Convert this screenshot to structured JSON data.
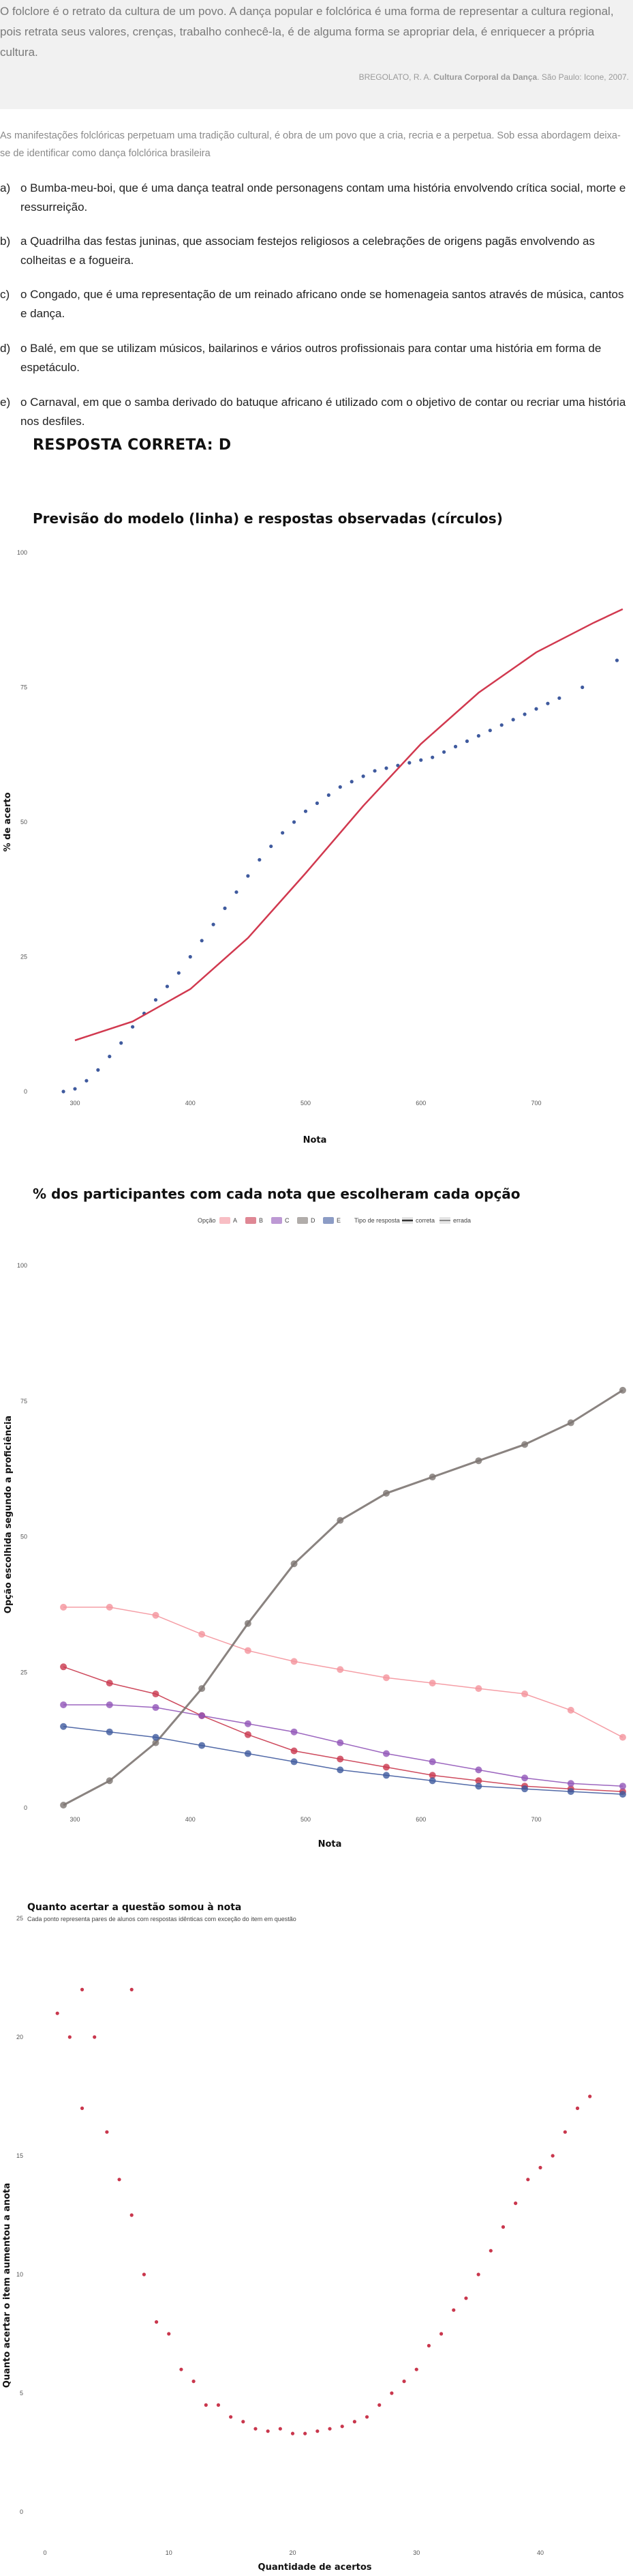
{
  "quote": {
    "text": "O folclore é o retrato da cultura de um povo. A dança popular e folclórica é uma forma de representar a cultura regional, pois retrata seus valores, crenças, trabalho conhecê-la, é de alguma forma se apropriar dela, é enriquecer a própria cultura.",
    "source_prefix": "BREGOLATO, R. A.",
    "source_title": "Cultura Corporal da Dança",
    "source_suffix": ". São Paulo: Icone, 2007."
  },
  "intro": "As manifestações folclóricas perpetuam uma tradição cultural, é obra de um povo que a cria, recria e a perpetua. Sob essa abordagem deixa-se de identificar como dança folclórica brasileira",
  "alternatives": [
    {
      "letter": "a)",
      "text": "o Bumba-meu-boi, que é uma dança teatral onde personagens contam uma história envolvendo crítica social, morte e ressurreição."
    },
    {
      "letter": "b)",
      "text": "a Quadrilha das festas juninas, que associam festejos religiosos a celebrações de origens pagãs envolvendo as colheitas e a fogueira."
    },
    {
      "letter": "c)",
      "text": "o Congado, que é uma representação de um reinado africano onde se homenageia santos através de música, cantos e dança."
    },
    {
      "letter": "d)",
      "text": "o Balé, em que se utilizam músicos, bailarinos e vários outros profissionais para contar uma história em forma de espetáculo."
    },
    {
      "letter": "e)",
      "text": "o Carnaval, em que o samba derivado do batuque africano é utilizado com o objetivo de contar ou recriar uma história nos desfiles."
    }
  ],
  "answer": "RESPOSTA CORRETA: D",
  "chart_data": [
    {
      "type": "scatter",
      "title": "Previsão do modelo (linha) e respostas observadas (círculos)",
      "xlabel": "Nota",
      "ylabel": "% de acerto",
      "xlim": [
        280,
        780
      ],
      "ylim": [
        0,
        100
      ],
      "xticks": [
        "300",
        "400",
        "500",
        "600",
        "700"
      ],
      "yticks": [
        "0",
        "25",
        "50",
        "75",
        "100"
      ],
      "grid": false,
      "colors": {
        "observed": "#3f5a9e",
        "model": "#d1394f"
      },
      "model_curve": {
        "x": [
          300,
          350,
          400,
          450,
          500,
          550,
          600,
          650,
          700,
          750,
          775
        ],
        "y": [
          9.5,
          13,
          19,
          28.5,
          40.5,
          53,
          64.5,
          74,
          81.5,
          87,
          89.5
        ]
      },
      "observed": {
        "x": [
          290,
          300,
          310,
          320,
          330,
          340,
          350,
          360,
          370,
          380,
          390,
          400,
          410,
          420,
          430,
          440,
          450,
          460,
          470,
          480,
          490,
          500,
          510,
          520,
          530,
          540,
          550,
          560,
          570,
          580,
          590,
          600,
          610,
          620,
          630,
          640,
          650,
          660,
          670,
          680,
          690,
          700,
          710,
          720,
          740,
          770
        ],
        "y": [
          0,
          0.5,
          2,
          4,
          6.5,
          9,
          12,
          14.5,
          17,
          19.5,
          22,
          25,
          28,
          31,
          34,
          37,
          40,
          43,
          45.5,
          48,
          50,
          52,
          53.5,
          55,
          56.5,
          57.5,
          58.5,
          59.5,
          60,
          60.5,
          61,
          61.5,
          62,
          63,
          64,
          65,
          66,
          67,
          68,
          69,
          70,
          71,
          72,
          73,
          75,
          80
        ]
      }
    },
    {
      "type": "line",
      "title": "% dos participantes com cada nota que escolheram cada opção",
      "xlabel": "Nota",
      "ylabel": "Opção escolhida segundo a proficiência",
      "xlim": [
        280,
        780
      ],
      "ylim": [
        0,
        100
      ],
      "xticks": [
        "300",
        "400",
        "500",
        "600",
        "700"
      ],
      "yticks": [
        "0",
        "25",
        "50",
        "75",
        "100"
      ],
      "legend": {
        "position": "top",
        "option_title": "Opção",
        "type_title": "Tipo de resposta",
        "type_labels": [
          "correta",
          "errada"
        ]
      },
      "x": [
        290,
        330,
        370,
        410,
        450,
        490,
        530,
        570,
        610,
        650,
        690,
        730,
        775
      ],
      "series": [
        {
          "name": "A",
          "color": "#f4939c",
          "values": [
            37,
            37,
            35.5,
            32,
            29,
            27,
            25.5,
            24,
            23,
            22,
            21,
            18,
            13
          ]
        },
        {
          "name": "B",
          "color": "#c9374d",
          "values": [
            26,
            23,
            21,
            17,
            13.5,
            10.5,
            9,
            7.5,
            6,
            5,
            4,
            3.5,
            3
          ]
        },
        {
          "name": "C",
          "color": "#9155b8",
          "values": [
            19,
            19,
            18.5,
            17,
            15.5,
            14,
            12,
            10,
            8.5,
            7,
            5.5,
            4.5,
            4
          ]
        },
        {
          "name": "D",
          "color": "#7d7672",
          "values": [
            0.5,
            5,
            12,
            22,
            34,
            45,
            53,
            58,
            61,
            64,
            67,
            71,
            77
          ]
        },
        {
          "name": "E",
          "color": "#3f5a9e",
          "values": [
            15,
            14,
            13,
            11.5,
            10,
            8.5,
            7,
            6,
            5,
            4,
            3.5,
            3,
            2.5
          ]
        }
      ]
    },
    {
      "type": "scatter",
      "title": "Quanto acertar a questão somou à nota",
      "subtitle": "Cada ponto representa pares de alunos com respostas idênticas com exceção do item em questão",
      "xlabel": "Quantidade de acertos",
      "ylabel": "Quanto acertar o item aumentou a anota",
      "xlim": [
        0,
        46
      ],
      "ylim": [
        0,
        25
      ],
      "xticks": [
        "0",
        "10",
        "20",
        "30",
        "40"
      ],
      "yticks": [
        "0",
        "5",
        "10",
        "15",
        "20",
        "25"
      ],
      "color": "#c9374d",
      "x": [
        1,
        2,
        3,
        3,
        4,
        5,
        6,
        7,
        7,
        8,
        9,
        10,
        11,
        12,
        13,
        14,
        15,
        16,
        17,
        18,
        19,
        20,
        21,
        22,
        23,
        24,
        25,
        26,
        27,
        28,
        29,
        30,
        31,
        32,
        33,
        34,
        35,
        36,
        37,
        38,
        39,
        40,
        41,
        42,
        43,
        44
      ],
      "y": [
        21,
        20,
        22,
        17,
        20,
        16,
        14,
        12.5,
        22,
        10,
        8,
        7.5,
        6,
        5.5,
        4.5,
        4.5,
        4,
        3.8,
        3.5,
        3.4,
        3.5,
        3.3,
        3.3,
        3.4,
        3.5,
        3.6,
        3.8,
        4,
        4.5,
        5,
        5.5,
        6,
        7,
        7.5,
        8.5,
        9,
        10,
        11,
        12,
        13,
        14,
        14.5,
        15,
        16,
        17,
        17.5
      ]
    }
  ]
}
